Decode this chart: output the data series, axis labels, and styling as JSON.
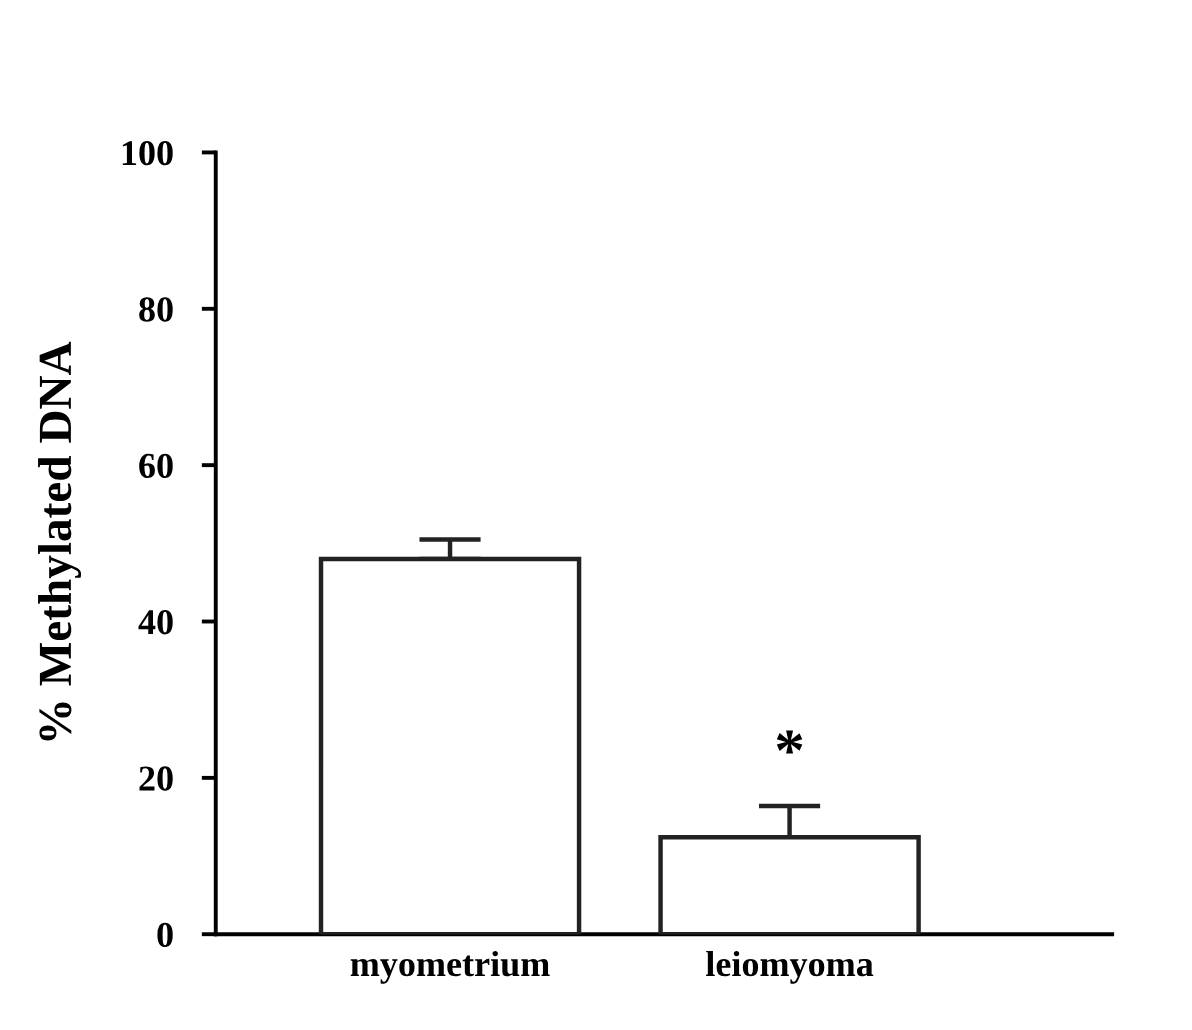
{
  "chart_data": {
    "type": "bar",
    "ylabel": "% Methylated DNA",
    "categories": [
      "myometrium",
      "leiomyoma"
    ],
    "values": [
      48,
      12.4
    ],
    "errors": [
      [
        48,
        50.5
      ],
      [
        12.4,
        16.4
      ]
    ],
    "color": "#ffffff",
    "ylim": [
      0,
      100
    ],
    "yticks": [
      0,
      20,
      40,
      60,
      80,
      100
    ],
    "annotations": [
      "*"
    ],
    "grid": false,
    "legend": false
  }
}
